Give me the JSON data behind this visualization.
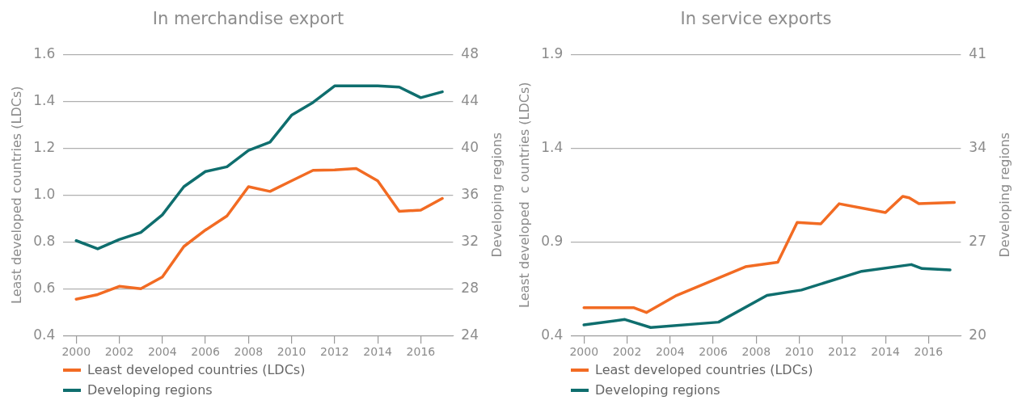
{
  "chart_data": [
    {
      "type": "line",
      "title": "In merchandise export",
      "ylabel": "Least developed countries (LDCs)",
      "y2label": "Developing regions",
      "x": [
        2000,
        2001,
        2002,
        2003,
        2004,
        2005,
        2006,
        2007,
        2008,
        2009,
        2010,
        2011,
        2012,
        2013,
        2014,
        2015,
        2016,
        2017
      ],
      "series": [
        {
          "name": "Least developed countries (LDCs)",
          "color": "#f26b23",
          "values": [
            0.555,
            0.575,
            0.61,
            0.6,
            0.65,
            0.78,
            0.85,
            0.91,
            1.035,
            1.015,
            1.06,
            1.105,
            1.107,
            1.113,
            1.06,
            0.93,
            0.935,
            0.985
          ]
        },
        {
          "name": "Developing regions",
          "color": "#0f6e6e",
          "axis": "y2",
          "values": [
            32.1,
            31.4,
            32.2,
            32.8,
            34.3,
            36.7,
            38.0,
            38.4,
            39.8,
            40.5,
            42.8,
            43.9,
            45.3,
            45.3,
            45.3,
            45.2,
            44.3,
            44.8
          ]
        }
      ],
      "xlim": [
        1999.4,
        2017.5
      ],
      "xticks": [
        2000,
        2002,
        2004,
        2006,
        2008,
        2010,
        2012,
        2014,
        2016
      ],
      "ylim": [
        0.4,
        1.6
      ],
      "yticks": [
        {
          "value": 0.4,
          "label": "0.4"
        },
        {
          "value": 0.6,
          "label": "0.6"
        },
        {
          "value": 0.8,
          "label": "0.8"
        },
        {
          "value": 1.0,
          "label": "1.0"
        },
        {
          "value": 1.2,
          "label": "1.2"
        },
        {
          "value": 1.4,
          "label": "1.4"
        },
        {
          "value": 1.6,
          "label": "1.6"
        }
      ],
      "y2lim": [
        24,
        48
      ],
      "y2ticks": [
        24,
        28,
        32,
        36,
        40,
        44,
        48
      ],
      "grid": "y",
      "legend": "bottom",
      "marker": "none",
      "line_style": "solid"
    },
    {
      "type": "line",
      "title": "In service exports",
      "ylabel": "Least developed  c ountries (LDCs)",
      "y2label": "Developing regions",
      "series": [
        {
          "name": "Least developed countries (LDCs)",
          "color": "#f26b23",
          "x": [
            2000,
            2002.3,
            2002.9,
            2004.3,
            2007.5,
            2009.0,
            2009.9,
            2011.0,
            2011.85,
            2014.0,
            2014.8,
            2015.1,
            2015.55,
            2017.2
          ],
          "values": [
            0.549,
            0.549,
            0.523,
            0.614,
            0.767,
            0.791,
            1.003,
            0.996,
            1.103,
            1.056,
            1.142,
            1.135,
            1.103,
            1.11
          ]
        },
        {
          "name": "Developing regions",
          "color": "#0f6e6e",
          "axis": "y2",
          "x": [
            2000,
            2001.9,
            2003.1,
            2006.25,
            2008.5,
            2010.1,
            2012.9,
            2015.2,
            2015.7,
            2017.0
          ],
          "values": [
            20.8,
            21.2,
            20.6,
            21.0,
            23.0,
            23.4,
            24.8,
            25.3,
            25.0,
            24.9
          ]
        }
      ],
      "xlim": [
        1999.4,
        2017.5
      ],
      "xticks": [
        2000,
        2002,
        2004,
        2006,
        2008,
        2010,
        2012,
        2014,
        2016
      ],
      "ylim": [
        0.4,
        1.9
      ],
      "yticks": [
        0.4,
        0.9,
        1.4,
        1.9
      ],
      "y2lim": [
        20,
        41
      ],
      "y2ticks": [
        20,
        27,
        34,
        41
      ],
      "grid": "y",
      "legend": "bottom",
      "marker": "none",
      "line_style": "solid"
    }
  ]
}
